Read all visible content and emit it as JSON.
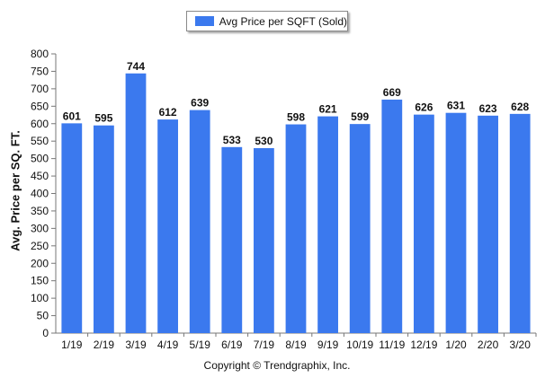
{
  "chart_data": {
    "type": "bar",
    "categories": [
      "1/19",
      "2/19",
      "3/19",
      "4/19",
      "5/19",
      "6/19",
      "7/19",
      "8/19",
      "9/19",
      "10/19",
      "11/19",
      "12/19",
      "1/20",
      "2/20",
      "3/20"
    ],
    "series": [
      {
        "name": "Avg Price per SQFT (Sold)",
        "values": [
          601,
          595,
          744,
          612,
          639,
          533,
          530,
          598,
          621,
          599,
          669,
          626,
          631,
          623,
          628
        ]
      }
    ],
    "ylabel": "Avg. Price per SQ. FT.",
    "xlabel": "",
    "ylim": [
      0,
      800
    ],
    "yticks": [
      0,
      50,
      100,
      150,
      200,
      250,
      300,
      350,
      400,
      450,
      500,
      550,
      600,
      650,
      700,
      750,
      800
    ],
    "legend_position": "top-center",
    "grid": false,
    "bar_color": "#3b79ee"
  },
  "footer": {
    "copyright": "Copyright © Trendgraphix, Inc."
  }
}
